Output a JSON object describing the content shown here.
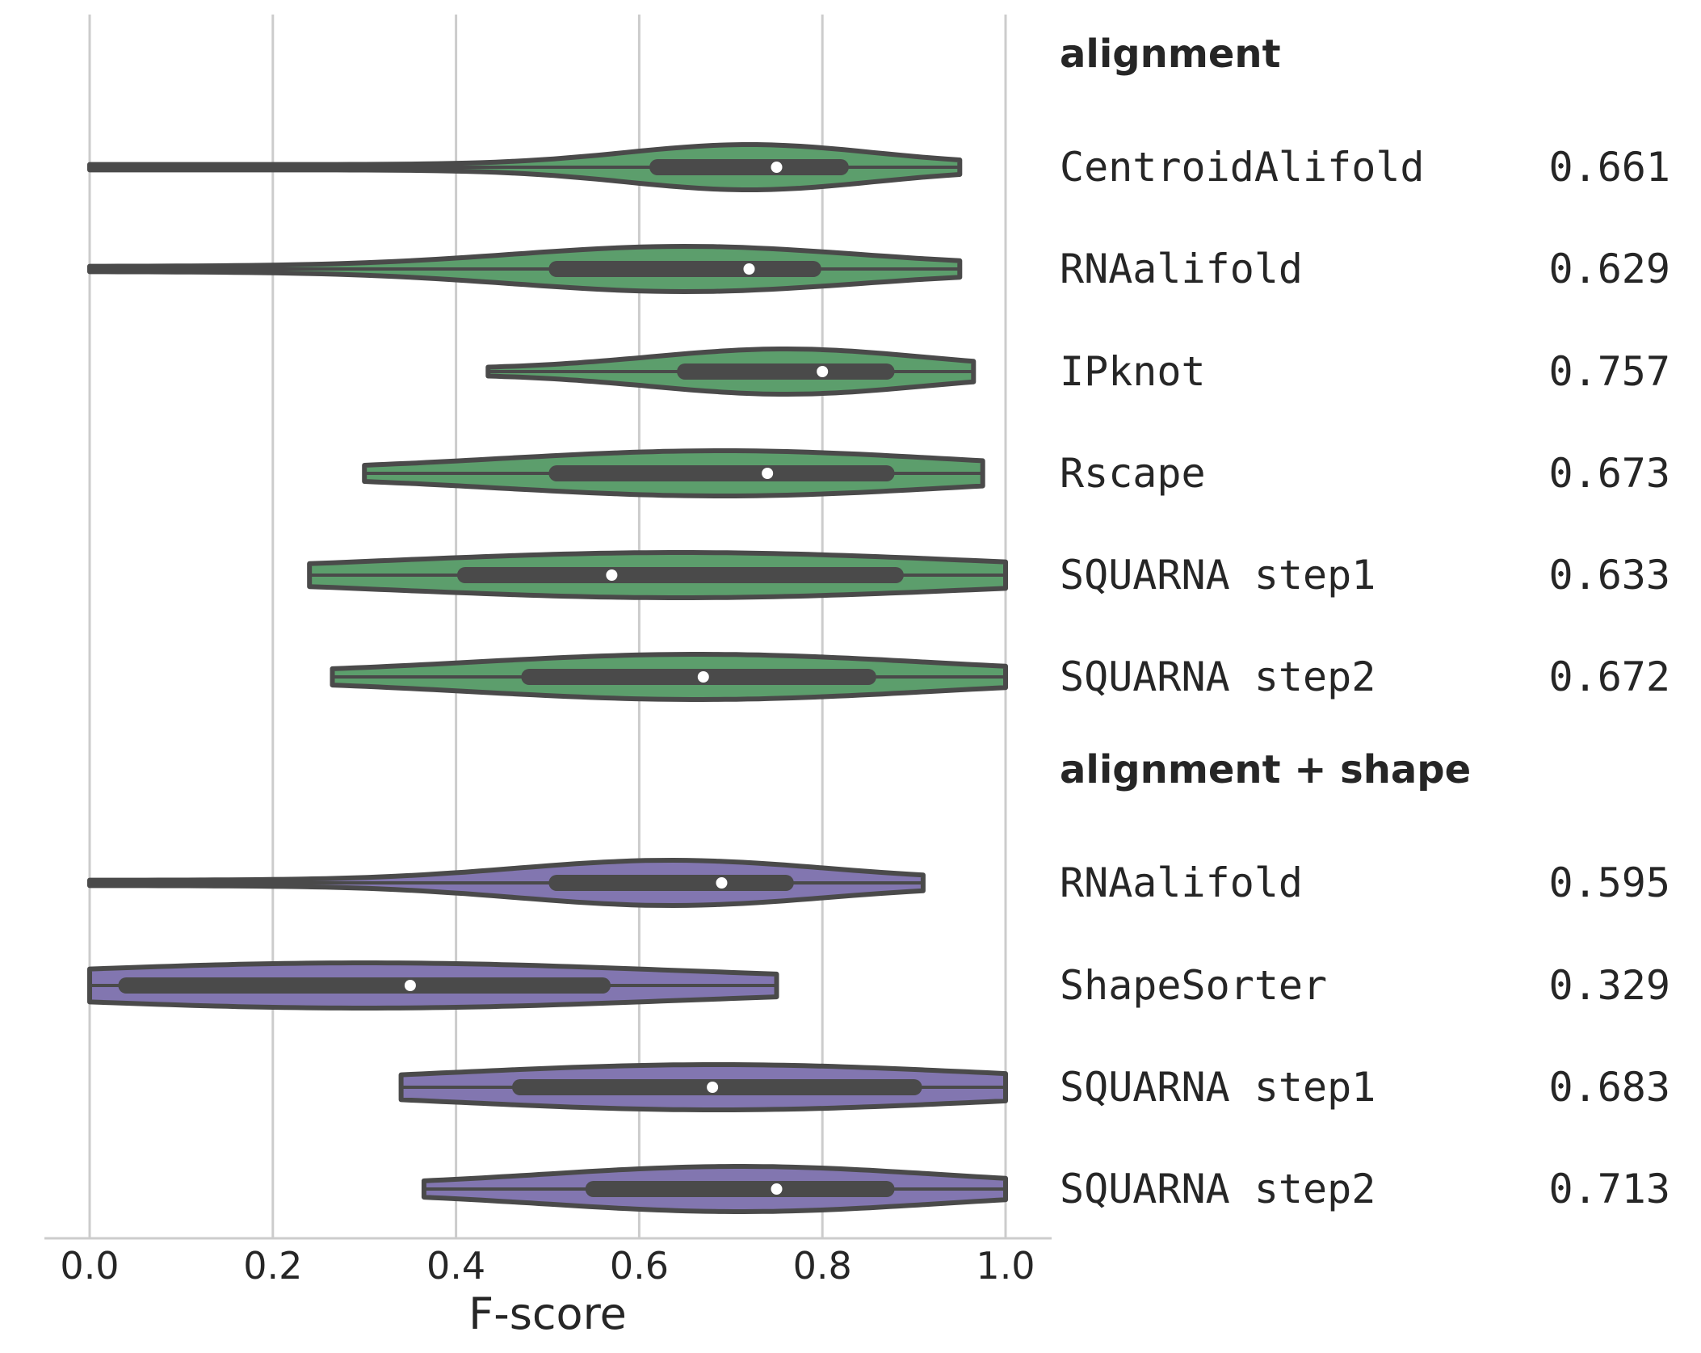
{
  "chart_data": {
    "type": "violin",
    "orientation": "horizontal",
    "xlabel": "F-score",
    "xlim": [
      0.0,
      1.0
    ],
    "x_ticks": [
      "0.0",
      "0.2",
      "0.4",
      "0.6",
      "0.8",
      "1.0"
    ],
    "grid": "vertical lines",
    "groups": [
      {
        "header": "alignment",
        "color": "#5c9e6c",
        "methods": [
          {
            "name": "CentroidAlifold",
            "score": "0.661",
            "min": 0.0,
            "q1": 0.62,
            "median": 0.75,
            "q3": 0.82,
            "max": 0.95
          },
          {
            "name": "RNAalifold",
            "score": "0.629",
            "min": 0.0,
            "q1": 0.51,
            "median": 0.72,
            "q3": 0.79,
            "max": 0.95
          },
          {
            "name": "IPknot",
            "score": "0.757",
            "min": 0.435,
            "q1": 0.65,
            "median": 0.8,
            "q3": 0.87,
            "max": 0.965
          },
          {
            "name": "Rscape",
            "score": "0.673",
            "min": 0.3,
            "q1": 0.51,
            "median": 0.74,
            "q3": 0.87,
            "max": 0.975
          },
          {
            "name": "SQUARNA step1",
            "score": "0.633",
            "min": 0.24,
            "q1": 0.41,
            "median": 0.57,
            "q3": 0.88,
            "max": 1.0
          },
          {
            "name": "SQUARNA step2",
            "score": "0.672",
            "min": 0.265,
            "q1": 0.48,
            "median": 0.67,
            "q3": 0.85,
            "max": 1.0
          }
        ]
      },
      {
        "header": "alignment + shape",
        "color": "#8276b0",
        "methods": [
          {
            "name": "RNAalifold",
            "score": "0.595",
            "min": 0.0,
            "q1": 0.51,
            "median": 0.69,
            "q3": 0.76,
            "max": 0.91
          },
          {
            "name": "ShapeSorter",
            "score": "0.329",
            "min": 0.0,
            "q1": 0.04,
            "median": 0.35,
            "q3": 0.56,
            "max": 0.75
          },
          {
            "name": "SQUARNA step1",
            "score": "0.683",
            "min": 0.34,
            "q1": 0.47,
            "median": 0.68,
            "q3": 0.9,
            "max": 1.0
          },
          {
            "name": "SQUARNA step2",
            "score": "0.713",
            "min": 0.365,
            "q1": 0.55,
            "median": 0.75,
            "q3": 0.87,
            "max": 1.0
          }
        ]
      }
    ]
  }
}
